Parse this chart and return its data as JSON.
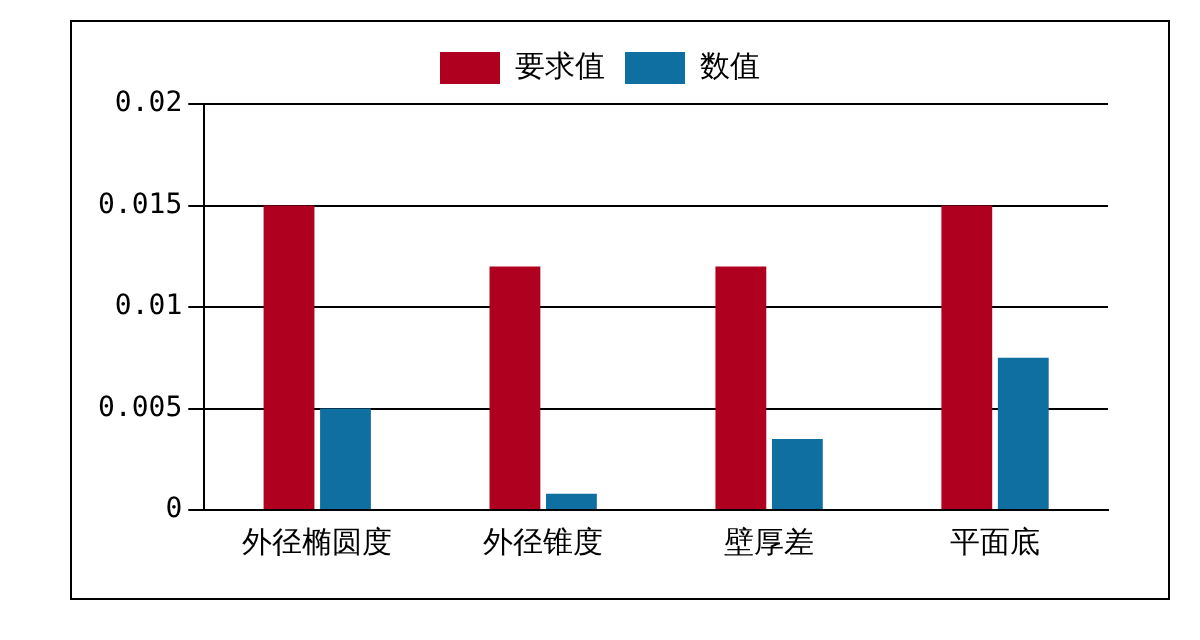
{
  "chart_data": {
    "type": "bar",
    "categories": [
      "外径椭圆度",
      "外径锥度",
      "壁厚差",
      "平面底"
    ],
    "series": [
      {
        "name": "要求值",
        "color": "#b00020",
        "values": [
          0.015,
          0.012,
          0.012,
          0.015
        ]
      },
      {
        "name": "数值",
        "color": "#0f6fa0",
        "values": [
          0.005,
          0.0008,
          0.0035,
          0.0075
        ]
      }
    ],
    "ylim": [
      0,
      0.02
    ],
    "yticks": [
      0,
      0.005,
      0.01,
      0.015,
      0.02
    ],
    "grid": "y",
    "legend": "top"
  }
}
